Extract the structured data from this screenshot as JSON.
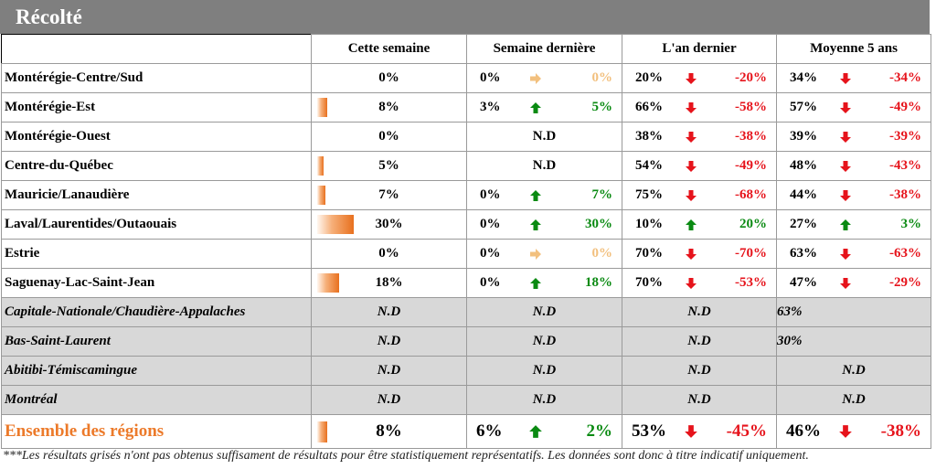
{
  "title": "Récolté",
  "columns": [
    "Cette semaine",
    "Semaine dernière",
    "L'an dernier",
    "Moyenne 5 ans"
  ],
  "nd": "N.D",
  "colors": {
    "up": "#0a8a12",
    "down": "#e6131b",
    "flat": "#f2c07e",
    "total": "#ec7a2a",
    "bar": "#e8701e"
  },
  "rows": [
    {
      "region": "Montérégie-Centre/Sud",
      "cur": "0%",
      "bar": 0,
      "lw": {
        "a": "0%",
        "dir": "flat",
        "b": "0%"
      },
      "ly": {
        "a": "20%",
        "dir": "down",
        "b": "-20%"
      },
      "avg": {
        "a": "34%",
        "dir": "down",
        "b": "-34%"
      }
    },
    {
      "region": "Montérégie-Est",
      "cur": "8%",
      "bar": 8,
      "lw": {
        "a": "3%",
        "dir": "up",
        "b": "5%"
      },
      "ly": {
        "a": "66%",
        "dir": "down",
        "b": "-58%"
      },
      "avg": {
        "a": "57%",
        "dir": "down",
        "b": "-49%"
      }
    },
    {
      "region": "Montérégie-Ouest",
      "cur": "0%",
      "bar": 0,
      "lw": {
        "nd": "N.D"
      },
      "ly": {
        "a": "38%",
        "dir": "down",
        "b": "-38%"
      },
      "avg": {
        "a": "39%",
        "dir": "down",
        "b": "-39%"
      }
    },
    {
      "region": "Centre-du-Québec",
      "cur": "5%",
      "bar": 5,
      "lw": {
        "nd": "N.D"
      },
      "ly": {
        "a": "54%",
        "dir": "down",
        "b": "-49%"
      },
      "avg": {
        "a": "48%",
        "dir": "down",
        "b": "-43%"
      }
    },
    {
      "region": "Mauricie/Lanaudière",
      "cur": "7%",
      "bar": 7,
      "lw": {
        "a": "0%",
        "dir": "up",
        "b": "7%"
      },
      "ly": {
        "a": "75%",
        "dir": "down",
        "b": "-68%"
      },
      "avg": {
        "a": "44%",
        "dir": "down",
        "b": "-38%"
      }
    },
    {
      "region": "Laval/Laurentides/Outaouais",
      "cur": "30%",
      "bar": 30,
      "lw": {
        "a": "0%",
        "dir": "up",
        "b": "30%"
      },
      "ly": {
        "a": "10%",
        "dir": "up",
        "b": "20%"
      },
      "avg": {
        "a": "27%",
        "dir": "up",
        "b": "3%"
      }
    },
    {
      "region": "Estrie",
      "cur": "0%",
      "bar": 0,
      "lw": {
        "a": "0%",
        "dir": "flat",
        "b": "0%"
      },
      "ly": {
        "a": "70%",
        "dir": "down",
        "b": "-70%"
      },
      "avg": {
        "a": "63%",
        "dir": "down",
        "b": "-63%"
      }
    },
    {
      "region": "Saguenay-Lac-Saint-Jean",
      "cur": "18%",
      "bar": 18,
      "lw": {
        "a": "0%",
        "dir": "up",
        "b": "18%"
      },
      "ly": {
        "a": "70%",
        "dir": "down",
        "b": "-53%"
      },
      "avg": {
        "a": "47%",
        "dir": "down",
        "b": "-29%"
      }
    }
  ],
  "grey_rows": [
    {
      "region": "Capitale-Nationale/Chaudière-Appalaches",
      "cur": "N.D",
      "lw": "N.D",
      "ly": "N.D",
      "avg": "63%",
      "avg_left": true
    },
    {
      "region": "Bas-Saint-Laurent",
      "cur": "N.D",
      "lw": "N.D",
      "ly": "N.D",
      "avg": "30%",
      "avg_left": true
    },
    {
      "region": "Abitibi-Témiscamingue",
      "cur": "N.D",
      "lw": "N.D",
      "ly": "N.D",
      "avg": "N.D",
      "avg_left": false
    },
    {
      "region": "Montréal",
      "cur": "N.D",
      "lw": "N.D",
      "ly": "N.D",
      "avg": "N.D",
      "avg_left": false
    }
  ],
  "total": {
    "region": "Ensemble des régions",
    "cur": "8%",
    "bar": 8,
    "lw": {
      "a": "6%",
      "dir": "up",
      "b": "2%"
    },
    "ly": {
      "a": "53%",
      "dir": "down",
      "b": "-45%"
    },
    "avg": {
      "a": "46%",
      "dir": "down",
      "b": "-38%"
    }
  },
  "footnote": "***Les résultats grisés n'ont pas obtenus suffisament de résultats pour être statistiquement représentatifs. Les données sont donc à titre indicatif uniquement."
}
